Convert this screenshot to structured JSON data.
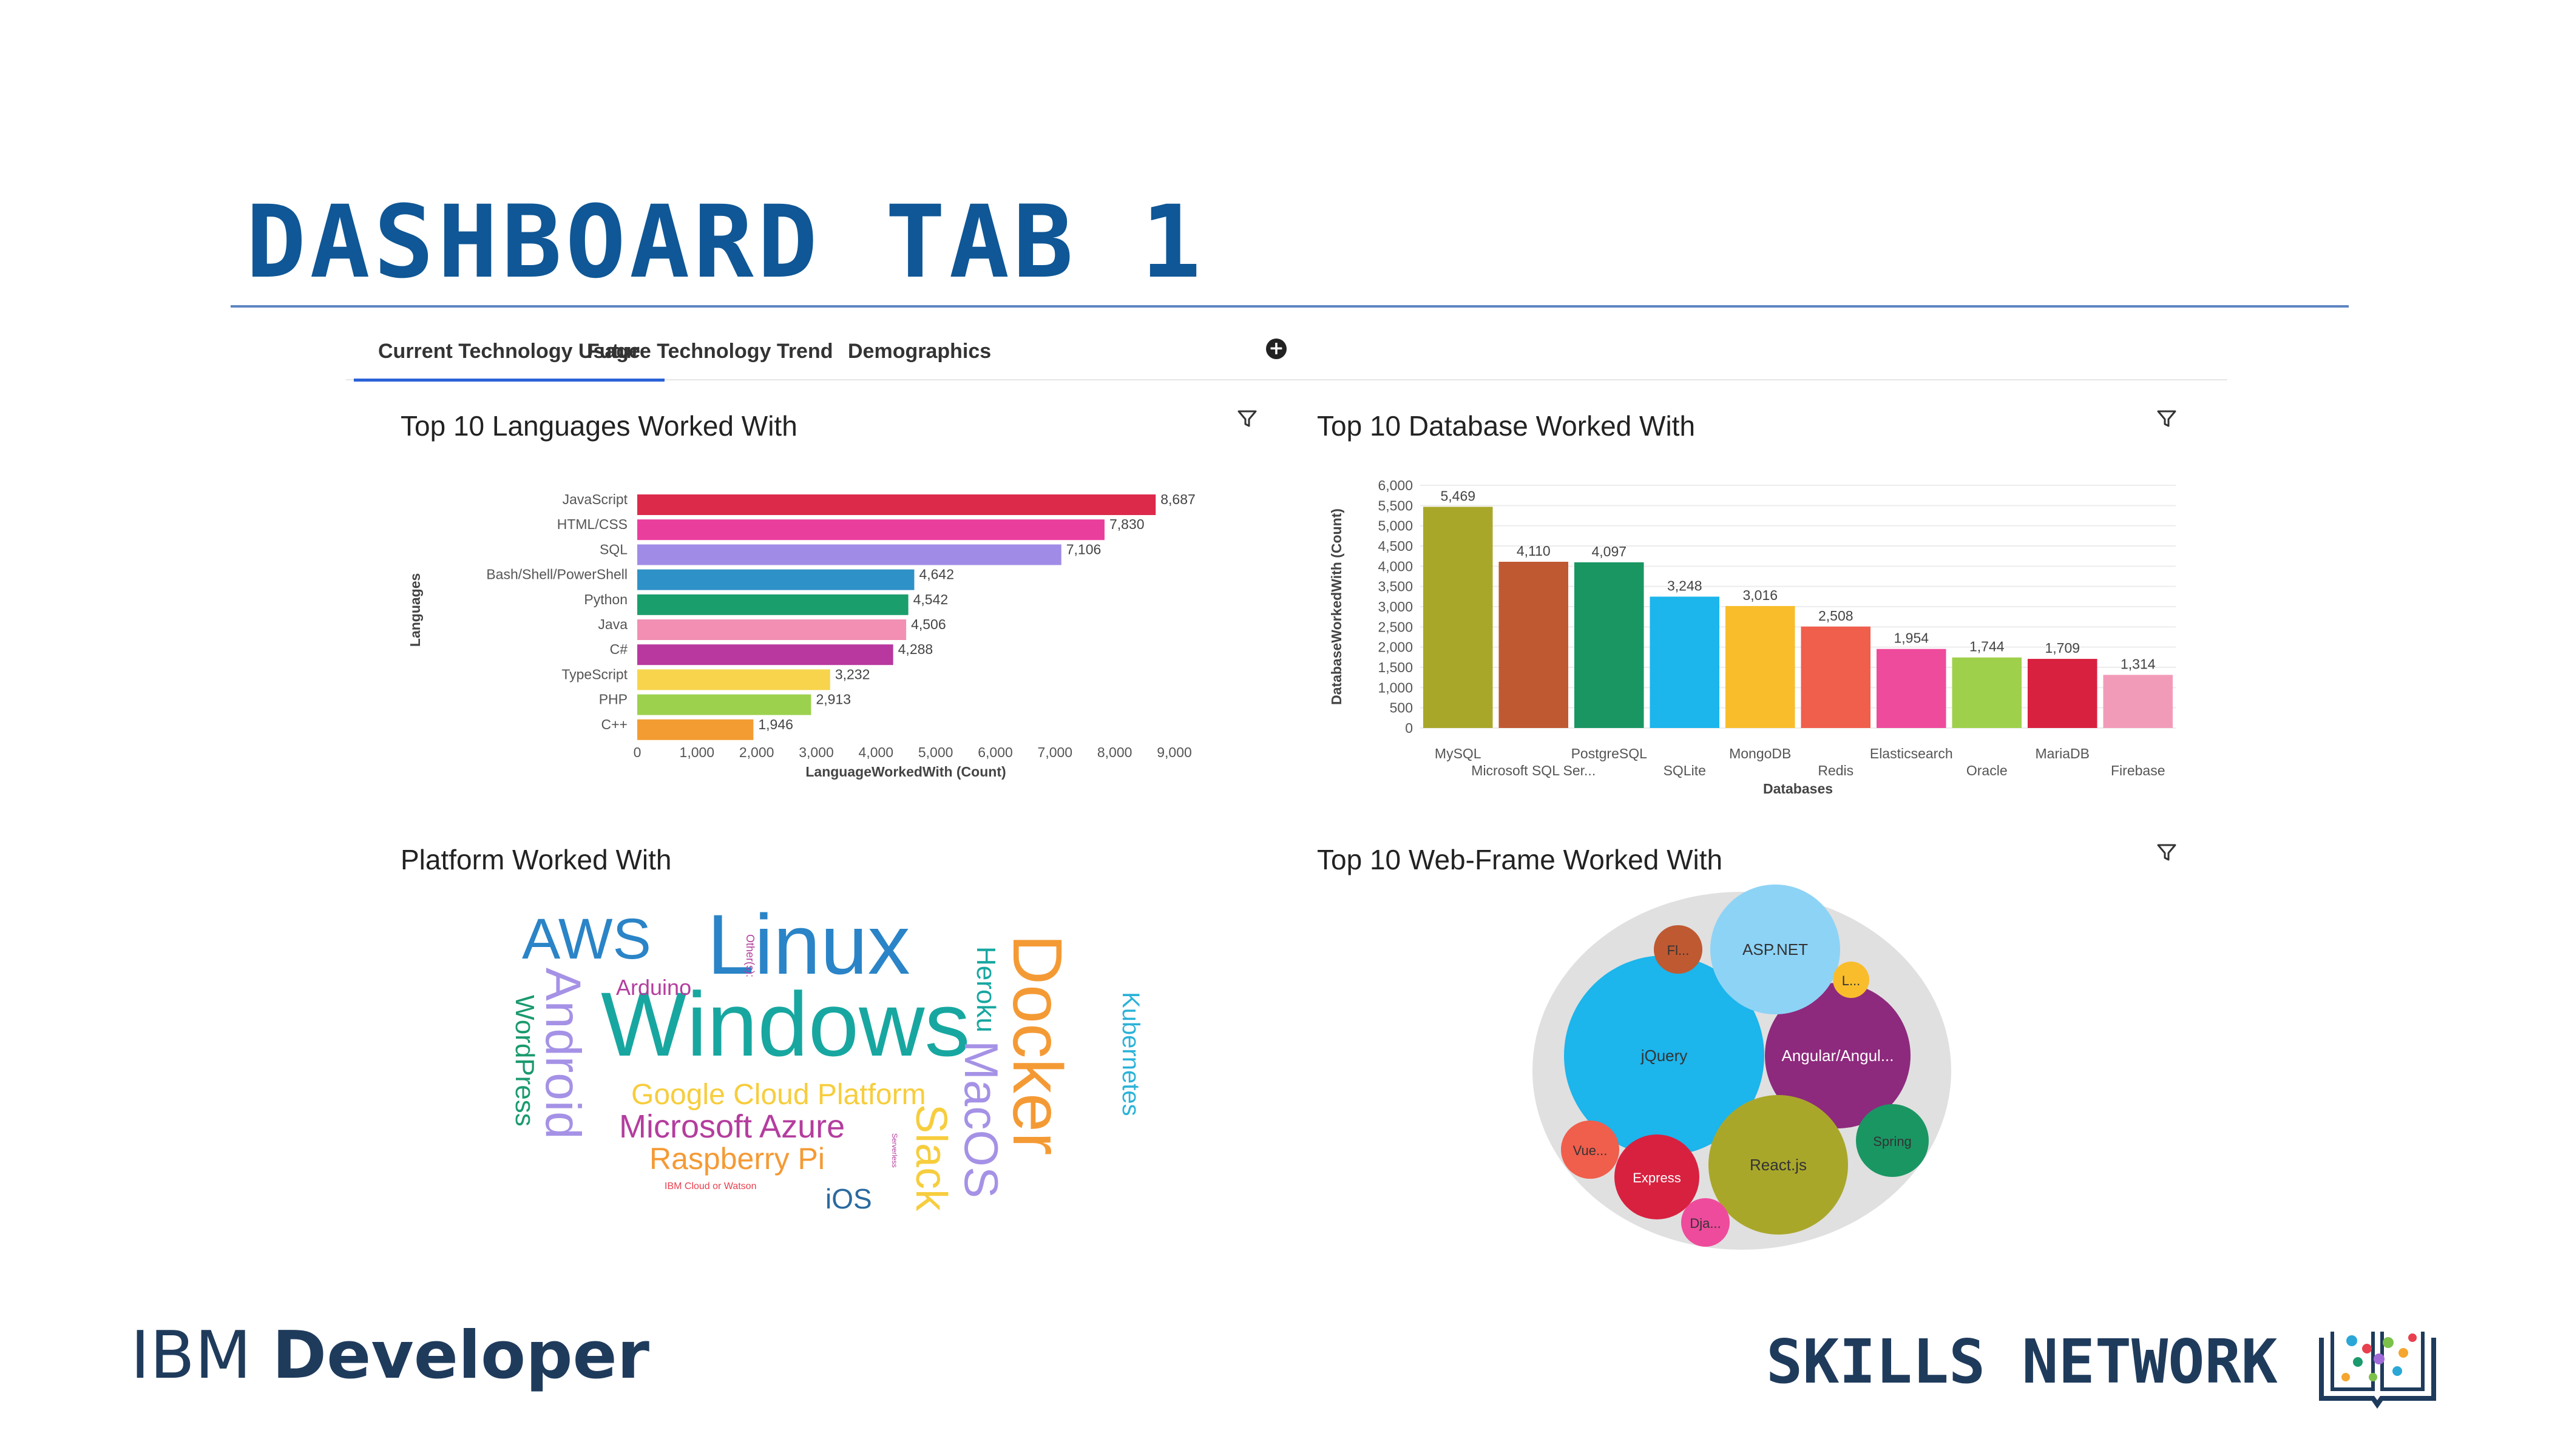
{
  "slide_title": "DASHBOARD TAB 1",
  "tabs": [
    {
      "label": "Current Technology Usage",
      "active": true
    },
    {
      "label": "Future Technology Trend",
      "active": false
    },
    {
      "label": "Demographics",
      "active": false
    }
  ],
  "add_tab_icon": "plus-circle-icon",
  "panels": {
    "languages_title": "Top 10 Languages Worked With",
    "databases_title": "Top 10 Database Worked With",
    "platforms_title": "Platform Worked With",
    "webframes_title": "Top 10 Web-Frame Worked With"
  },
  "chart_data": [
    {
      "type": "bar",
      "orientation": "horizontal",
      "title": "Top 10 Languages Worked With",
      "xlabel": "LanguageWorkedWith (Count)",
      "ylabel": "Languages",
      "xlim": [
        0,
        9000
      ],
      "xticks": [
        "0",
        "1,000",
        "2,000",
        "3,000",
        "4,000",
        "5,000",
        "6,000",
        "7,000",
        "8,000",
        "9,000"
      ],
      "categories": [
        "JavaScript",
        "HTML/CSS",
        "SQL",
        "Bash/Shell/PowerShell",
        "Python",
        "Java",
        "C#",
        "TypeScript",
        "PHP",
        "C++"
      ],
      "values": [
        8687,
        7830,
        7106,
        4642,
        4542,
        4506,
        4288,
        3232,
        2913,
        1946
      ],
      "value_labels": [
        "8,687",
        "7,830",
        "7,106",
        "4,642",
        "4,542",
        "4,506",
        "4,288",
        "3,232",
        "2,913",
        "1,946"
      ],
      "colors": [
        "#dc2a4b",
        "#ea3e9d",
        "#a08ce6",
        "#2e91c7",
        "#1a9e6c",
        "#f28fb3",
        "#b8389f",
        "#f7d44c",
        "#9cd14e",
        "#f39c32"
      ],
      "grid": false
    },
    {
      "type": "bar",
      "orientation": "vertical",
      "title": "Top 10 Database Worked With",
      "xlabel": "Databases",
      "ylabel": "DatabaseWorkedWith (Count)",
      "ylim": [
        0,
        6000
      ],
      "yticks": [
        "0",
        "500",
        "1,000",
        "1,500",
        "2,000",
        "2,500",
        "3,000",
        "3,500",
        "4,000",
        "4,500",
        "5,000",
        "5,500",
        "6,000"
      ],
      "categories": [
        "MySQL",
        "Microsoft SQL Ser...",
        "PostgreSQL",
        "SQLite",
        "MongoDB",
        "Redis",
        "Elasticsearch",
        "Oracle",
        "MariaDB",
        "Firebase"
      ],
      "values": [
        5469,
        4110,
        4097,
        3248,
        3016,
        2508,
        1954,
        1744,
        1709,
        1314
      ],
      "value_labels": [
        "5,469",
        "4,110",
        "4,097",
        "3,248",
        "3,016",
        "2,508",
        "1,954",
        "1,744",
        "1,709",
        "1,314"
      ],
      "colors": [
        "#a9a72a",
        "#bf5931",
        "#1a9663",
        "#1cb5ec",
        "#f9bd2c",
        "#f05e4c",
        "#ee4b9c",
        "#9fd04c",
        "#d8213f",
        "#f29bb9"
      ],
      "grid": true
    },
    {
      "type": "wordcloud",
      "title": "Platform Worked With",
      "words": [
        {
          "text": "Windows",
          "color": "#17a7a0"
        },
        {
          "text": "Linux",
          "color": "#2a84c7"
        },
        {
          "text": "Docker",
          "color": "#f49a35"
        },
        {
          "text": "AWS",
          "color": "#2a84c7"
        },
        {
          "text": "Android",
          "color": "#a592e6"
        },
        {
          "text": "MacOS",
          "color": "#a592e6"
        },
        {
          "text": "Slack",
          "color": "#f7cd3d"
        },
        {
          "text": "Google Cloud Platform",
          "color": "#f7cd3d"
        },
        {
          "text": "Microsoft Azure",
          "color": "#b43d9e"
        },
        {
          "text": "Raspberry Pi",
          "color": "#f49a35"
        },
        {
          "text": "WordPress",
          "color": "#1a9a6d"
        },
        {
          "text": "Heroku",
          "color": "#17a7a0"
        },
        {
          "text": "Kubernetes",
          "color": "#2ab2d8"
        },
        {
          "text": "Arduino",
          "color": "#b43d9e"
        },
        {
          "text": "iOS",
          "color": "#2a6aa0"
        },
        {
          "text": "Other(s):",
          "color": "#b43d9e"
        },
        {
          "text": "IBM Cloud or Watson",
          "color": "#e8404e"
        },
        {
          "text": "Serverless",
          "color": "#b43d9e"
        }
      ]
    },
    {
      "type": "bubble",
      "title": "Top 10 Web-Frame Worked With",
      "bubbles": [
        {
          "label": "jQuery",
          "color": "#1cb5ec"
        },
        {
          "label": "Angular/Angul...",
          "color": "#8d2a7d"
        },
        {
          "label": "React.js",
          "color": "#a9a72a"
        },
        {
          "label": "ASP.NET",
          "color": "#8dd3f6"
        },
        {
          "label": "Spring",
          "color": "#1a9663"
        },
        {
          "label": "Express",
          "color": "#d8213f"
        },
        {
          "label": "Vue...",
          "color": "#f05e4c"
        },
        {
          "label": "Dja...",
          "color": "#ee4b9c"
        },
        {
          "label": "Fl...",
          "color": "#bf5931"
        },
        {
          "label": "L...",
          "color": "#f9bd2c"
        }
      ],
      "background_color": "#e0e0e0"
    }
  ],
  "footer": {
    "ibm_light": "IBM",
    "ibm_bold": "Developer",
    "skills_network": "SKILLS NETWORK"
  }
}
